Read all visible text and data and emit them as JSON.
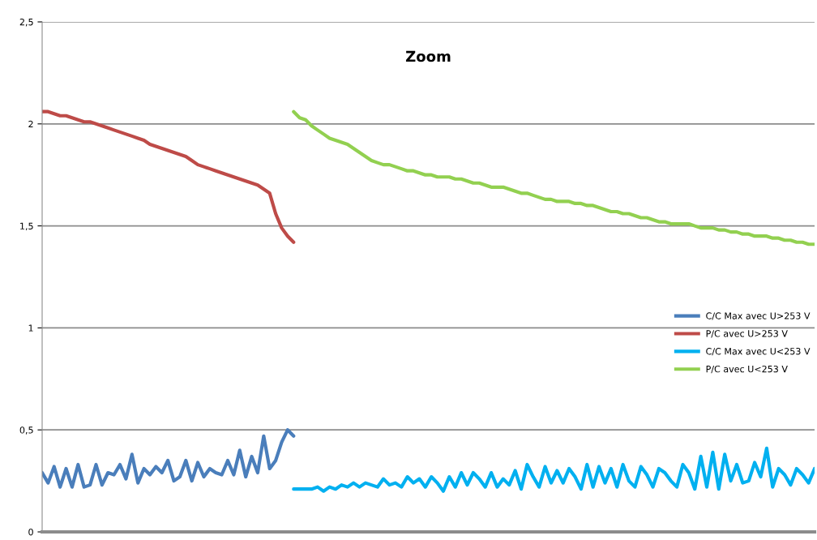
{
  "chart_data": {
    "type": "line",
    "title": "Zoom",
    "categories": [
      null,
      null,
      null,
      null,
      null,
      null,
      null,
      null,
      null,
      null,
      null,
      null,
      null,
      null,
      null,
      null,
      null,
      null,
      null,
      null,
      null,
      null,
      null,
      null,
      null,
      null,
      null,
      null,
      null,
      null,
      null,
      null,
      null,
      null,
      null,
      null,
      null,
      null,
      null,
      null,
      null,
      null,
      null,
      null,
      null,
      null,
      null,
      null,
      null,
      null,
      null,
      null,
      null,
      null,
      null,
      null,
      null,
      null,
      null,
      null,
      null,
      null,
      null,
      null,
      null,
      null,
      null,
      null,
      null,
      null,
      null,
      null,
      null,
      null,
      null,
      null,
      null,
      null,
      null,
      null,
      null,
      null,
      null,
      null,
      null,
      null,
      null,
      null,
      null,
      null,
      null,
      null,
      null,
      null,
      null,
      null,
      null,
      null,
      null,
      null,
      null,
      null,
      null,
      null,
      null,
      null,
      null,
      null,
      null,
      null,
      null,
      null,
      null,
      null,
      null,
      null,
      null,
      null,
      null,
      null,
      null,
      null,
      null,
      null,
      null,
      null,
      null,
      null,
      null,
      null
    ],
    "ylim": [
      0,
      2.5
    ],
    "yticks": [
      0,
      {
        "value": 0.5,
        "label": "0,5"
      },
      1,
      {
        "value": 1.5,
        "label": "1,5"
      },
      2,
      {
        "value": 2.5,
        "label": "2,5"
      }
    ],
    "grid": "y",
    "legend": "right",
    "tick_labels": "y",
    "marker": "none",
    "line_style": "solid",
    "series": [
      {
        "name": "C/C Max avec U>253 V",
        "color": "#4a7ebb",
        "values": [
          0.29,
          0.24,
          0.32,
          0.22,
          0.31,
          0.22,
          0.33,
          0.22,
          0.23,
          0.33,
          0.23,
          0.29,
          0.28,
          0.33,
          0.26,
          0.38,
          0.24,
          0.31,
          0.28,
          0.32,
          0.29,
          0.35,
          0.25,
          0.27,
          0.35,
          0.25,
          0.34,
          0.27,
          0.31,
          0.29,
          0.28,
          0.35,
          0.28,
          0.4,
          0.27,
          0.37,
          0.29,
          0.47,
          0.31,
          0.35,
          0.44,
          0.5,
          0.47,
          null,
          null,
          null,
          null,
          null,
          null,
          null,
          null,
          null,
          null,
          null,
          null,
          null,
          null,
          null,
          null,
          null,
          null,
          null,
          null,
          null,
          null,
          null,
          null,
          null,
          null,
          null,
          null,
          null,
          null,
          null,
          null,
          null,
          null,
          null,
          null,
          null,
          null,
          null,
          null,
          null,
          null,
          null,
          null,
          null,
          null,
          null,
          null,
          null,
          null,
          null,
          null,
          null,
          null,
          null,
          null,
          null,
          null,
          null,
          null,
          null,
          null,
          null,
          null,
          null,
          null,
          null,
          null,
          null,
          null,
          null,
          null,
          null,
          null,
          null,
          null,
          null,
          null,
          null,
          null,
          null,
          null,
          null,
          null,
          null,
          null,
          null
        ]
      },
      {
        "name": "P/C avec U>253 V",
        "color": "#be4b48",
        "values": [
          2.06,
          2.06,
          2.05,
          2.04,
          2.04,
          2.03,
          2.02,
          2.01,
          2.01,
          2.0,
          1.99,
          1.98,
          1.97,
          1.96,
          1.95,
          1.94,
          1.93,
          1.92,
          1.9,
          1.89,
          1.88,
          1.87,
          1.86,
          1.85,
          1.84,
          1.82,
          1.8,
          1.79,
          1.78,
          1.77,
          1.76,
          1.75,
          1.74,
          1.73,
          1.72,
          1.71,
          1.7,
          1.68,
          1.66,
          1.56,
          1.49,
          1.45,
          1.42,
          null,
          null,
          null,
          null,
          null,
          null,
          null,
          null,
          null,
          null,
          null,
          null,
          null,
          null,
          null,
          null,
          null,
          null,
          null,
          null,
          null,
          null,
          null,
          null,
          null,
          null,
          null,
          null,
          null,
          null,
          null,
          null,
          null,
          null,
          null,
          null,
          null,
          null,
          null,
          null,
          null,
          null,
          null,
          null,
          null,
          null,
          null,
          null,
          null,
          null,
          null,
          null,
          null,
          null,
          null,
          null,
          null,
          null,
          null,
          null,
          null,
          null,
          null,
          null,
          null,
          null,
          null,
          null,
          null,
          null,
          null,
          null,
          null,
          null,
          null,
          null,
          null,
          null,
          null,
          null,
          null,
          null,
          null,
          null,
          null,
          null,
          null
        ]
      },
      {
        "name": "C/C Max avec U<253 V",
        "color": "#00b0f0",
        "values": [
          null,
          null,
          null,
          null,
          null,
          null,
          null,
          null,
          null,
          null,
          null,
          null,
          null,
          null,
          null,
          null,
          null,
          null,
          null,
          null,
          null,
          null,
          null,
          null,
          null,
          null,
          null,
          null,
          null,
          null,
          null,
          null,
          null,
          null,
          null,
          null,
          null,
          null,
          null,
          null,
          null,
          null,
          0.21,
          0.21,
          0.21,
          0.21,
          0.22,
          0.2,
          0.22,
          0.21,
          0.23,
          0.22,
          0.24,
          0.22,
          0.24,
          0.23,
          0.22,
          0.26,
          0.23,
          0.24,
          0.22,
          0.27,
          0.24,
          0.26,
          0.22,
          0.27,
          0.24,
          0.2,
          0.27,
          0.22,
          0.29,
          0.23,
          0.29,
          0.26,
          0.22,
          0.29,
          0.22,
          0.26,
          0.23,
          0.3,
          0.21,
          0.33,
          0.27,
          0.22,
          0.32,
          0.24,
          0.3,
          0.24,
          0.31,
          0.27,
          0.21,
          0.33,
          0.22,
          0.32,
          0.24,
          0.31,
          0.22,
          0.33,
          0.25,
          0.22,
          0.32,
          0.28,
          0.22,
          0.31,
          0.29,
          0.25,
          0.22,
          0.33,
          0.29,
          0.21,
          0.37,
          0.22,
          0.39,
          0.21,
          0.38,
          0.25,
          0.33,
          0.24,
          0.25,
          0.34,
          0.27,
          0.41,
          0.22,
          0.31,
          0.28,
          0.23,
          0.31,
          0.28,
          0.24,
          0.31
        ]
      },
      {
        "name": "P/C avec U<253 V",
        "color": "#92d050",
        "values": [
          null,
          null,
          null,
          null,
          null,
          null,
          null,
          null,
          null,
          null,
          null,
          null,
          null,
          null,
          null,
          null,
          null,
          null,
          null,
          null,
          null,
          null,
          null,
          null,
          null,
          null,
          null,
          null,
          null,
          null,
          null,
          null,
          null,
          null,
          null,
          null,
          null,
          null,
          null,
          null,
          null,
          null,
          2.06,
          2.03,
          2.02,
          1.99,
          1.97,
          1.95,
          1.93,
          1.92,
          1.91,
          1.9,
          1.88,
          1.86,
          1.84,
          1.82,
          1.81,
          1.8,
          1.8,
          1.79,
          1.78,
          1.77,
          1.77,
          1.76,
          1.75,
          1.75,
          1.74,
          1.74,
          1.74,
          1.73,
          1.73,
          1.72,
          1.71,
          1.71,
          1.7,
          1.69,
          1.69,
          1.69,
          1.68,
          1.67,
          1.66,
          1.66,
          1.65,
          1.64,
          1.63,
          1.63,
          1.62,
          1.62,
          1.62,
          1.61,
          1.61,
          1.6,
          1.6,
          1.59,
          1.58,
          1.57,
          1.57,
          1.56,
          1.56,
          1.55,
          1.54,
          1.54,
          1.53,
          1.52,
          1.52,
          1.51,
          1.51,
          1.51,
          1.51,
          1.5,
          1.49,
          1.49,
          1.49,
          1.48,
          1.48,
          1.47,
          1.47,
          1.46,
          1.46,
          1.45,
          1.45,
          1.45,
          1.44,
          1.44,
          1.43,
          1.43,
          1.42,
          1.42,
          1.41,
          1.41
        ]
      }
    ]
  }
}
